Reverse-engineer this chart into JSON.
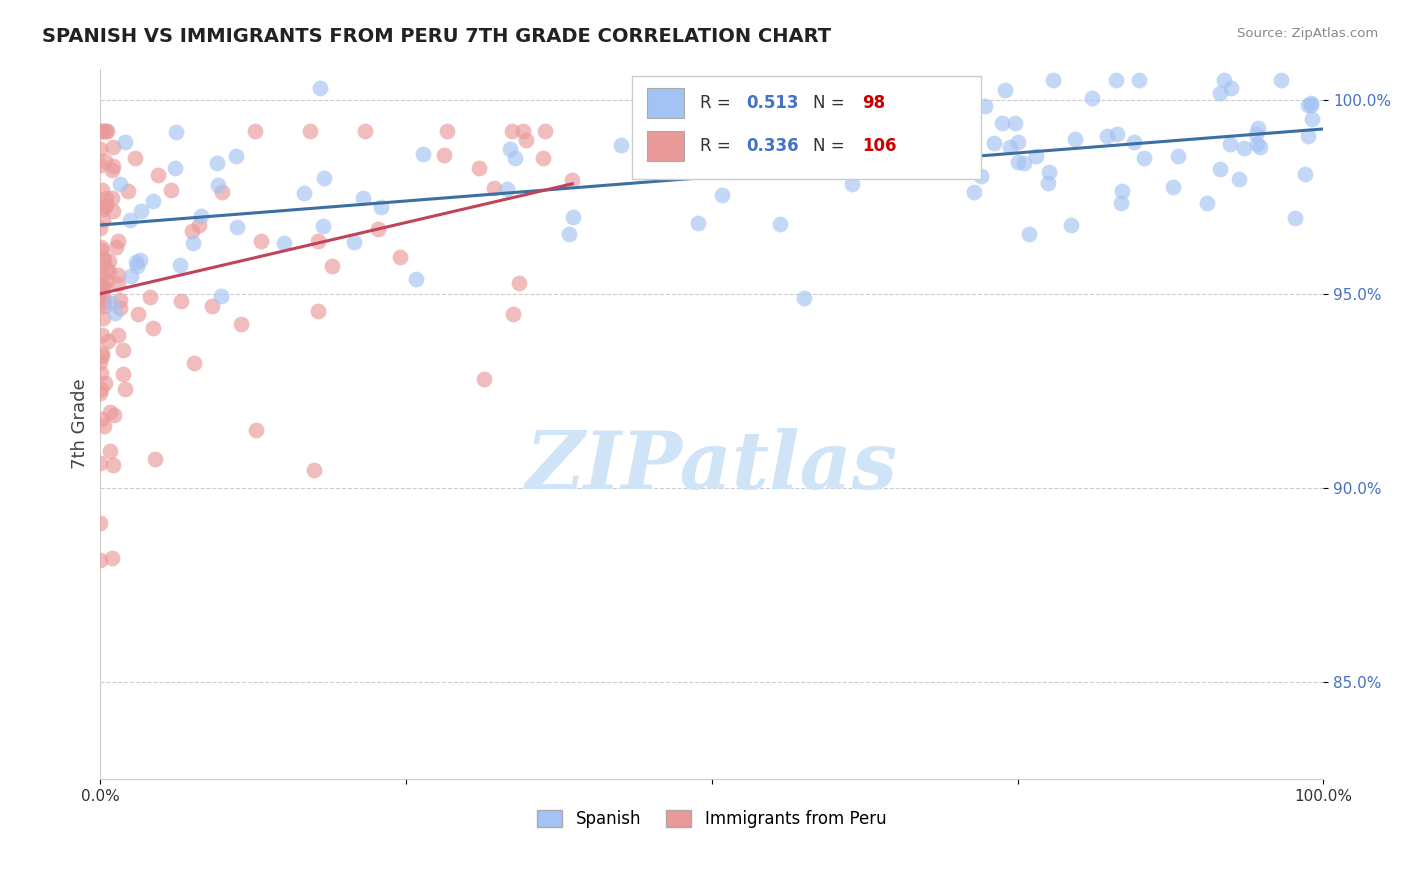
{
  "title": "SPANISH VS IMMIGRANTS FROM PERU 7TH GRADE CORRELATION CHART",
  "source_text": "Source: ZipAtlas.com",
  "ylabel": "7th Grade",
  "xmin": 0.0,
  "xmax": 1.0,
  "ymin": 0.825,
  "ymax": 1.008,
  "yticks": [
    0.85,
    0.9,
    0.95,
    1.0
  ],
  "ytick_labels": [
    "85.0%",
    "90.0%",
    "95.0%",
    "100.0%"
  ],
  "blue_R": 0.513,
  "blue_N": 98,
  "pink_R": 0.336,
  "pink_N": 106,
  "blue_color": "#a4c2f4",
  "pink_color": "#ea9999",
  "blue_line_color": "#3d6fa3",
  "pink_line_color": "#c0435a",
  "watermark": "ZIPatlas",
  "watermark_color": "#d0e4f7"
}
